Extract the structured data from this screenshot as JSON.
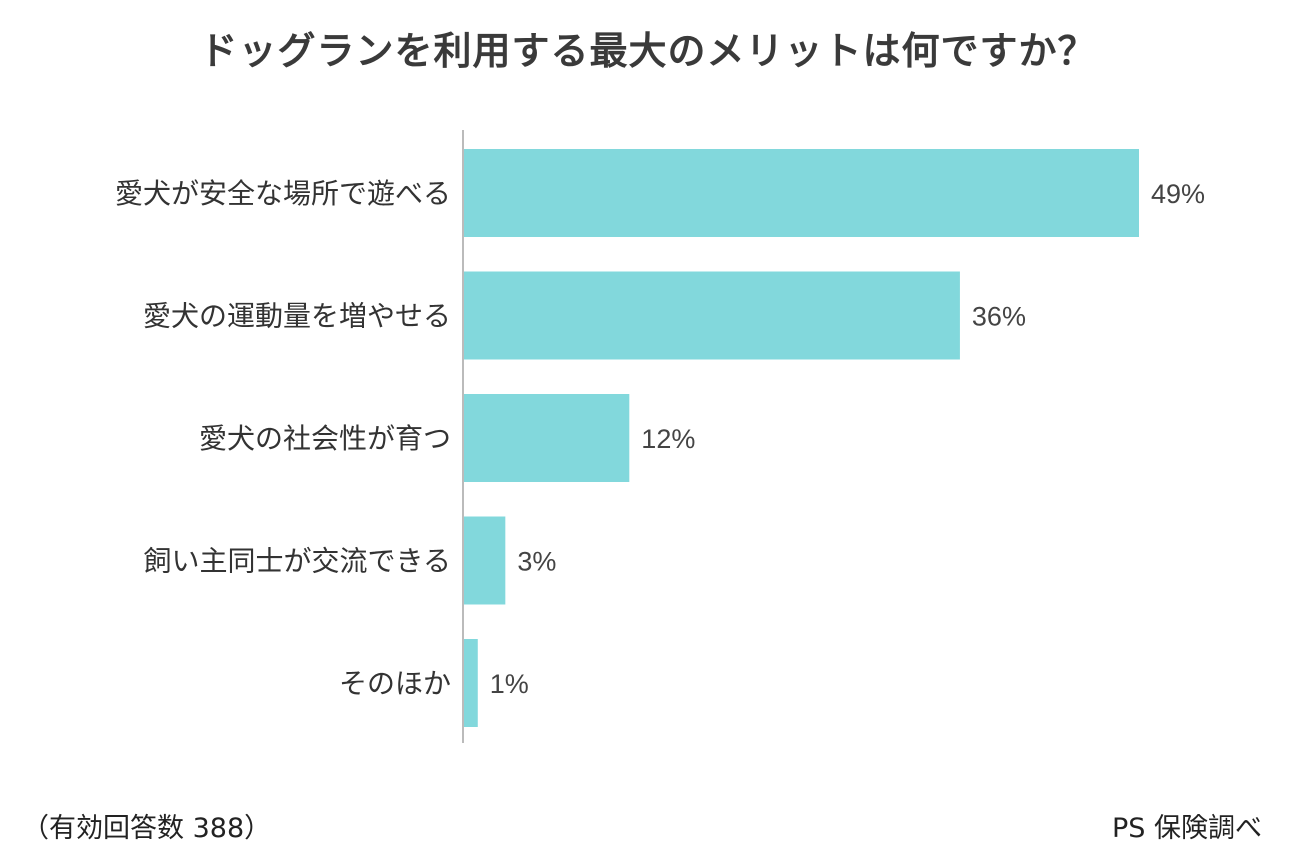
{
  "chart_data": {
    "type": "bar",
    "orientation": "horizontal",
    "title": "ドッグランを利用する最大のメリットは何ですか？",
    "categories": [
      "愛犬が安全な場所で遊べる",
      "愛犬の運動量を増やせる",
      "愛犬の社会性が育つ",
      "飼い主同士が交流できる",
      "そのほか"
    ],
    "values": [
      49,
      36,
      12,
      3,
      1
    ],
    "value_labels": [
      "49%",
      "36%",
      "12%",
      "3%",
      "1%"
    ],
    "unit": "%",
    "xlim": [
      0,
      49
    ],
    "grid": false,
    "bar_color": "#82d8dc",
    "axis_color": "#bbbbbb"
  },
  "footnote": "（有効回答数 388）",
  "source": "PS 保険調べ"
}
